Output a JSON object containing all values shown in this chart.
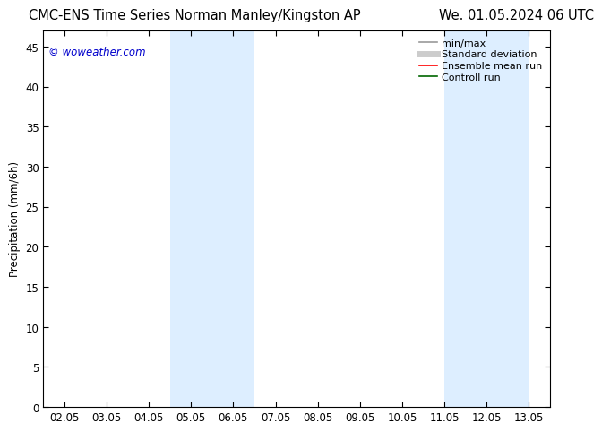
{
  "title_left": "CMC-ENS Time Series Norman Manley/Kingston AP",
  "title_right": "We. 01.05.2024 06 UTC",
  "ylabel": "Precipitation (mm/6h)",
  "watermark": "© woweather.com",
  "watermark_color": "#0000cc",
  "background_color": "#ffffff",
  "plot_bg_color": "#ffffff",
  "ylim": [
    0,
    47
  ],
  "yticks": [
    0,
    5,
    10,
    15,
    20,
    25,
    30,
    35,
    40,
    45
  ],
  "xtick_labels": [
    "02.05",
    "03.05",
    "04.05",
    "05.05",
    "06.05",
    "07.05",
    "08.05",
    "09.05",
    "10.05",
    "11.05",
    "12.05",
    "13.05"
  ],
  "num_xticks": 12,
  "shaded_bands": [
    {
      "xmin": 2.5,
      "xmax": 3.5,
      "color": "#ddeeff"
    },
    {
      "xmin": 3.5,
      "xmax": 4.5,
      "color": "#ddeeff"
    },
    {
      "xmin": 9.0,
      "xmax": 10.0,
      "color": "#ddeeff"
    },
    {
      "xmin": 10.0,
      "xmax": 11.0,
      "color": "#ddeeff"
    }
  ],
  "legend_items": [
    {
      "label": "min/max",
      "color": "#999999",
      "lw": 1.2,
      "ls": "-"
    },
    {
      "label": "Standard deviation",
      "color": "#cccccc",
      "lw": 5,
      "ls": "-"
    },
    {
      "label": "Ensemble mean run",
      "color": "#ff0000",
      "lw": 1.2,
      "ls": "-"
    },
    {
      "label": "Controll run",
      "color": "#006600",
      "lw": 1.2,
      "ls": "-"
    }
  ],
  "font_family": "DejaVu Sans",
  "title_fontsize": 10.5,
  "tick_fontsize": 8.5,
  "legend_fontsize": 8,
  "ylabel_fontsize": 8.5,
  "watermark_fontsize": 8.5
}
